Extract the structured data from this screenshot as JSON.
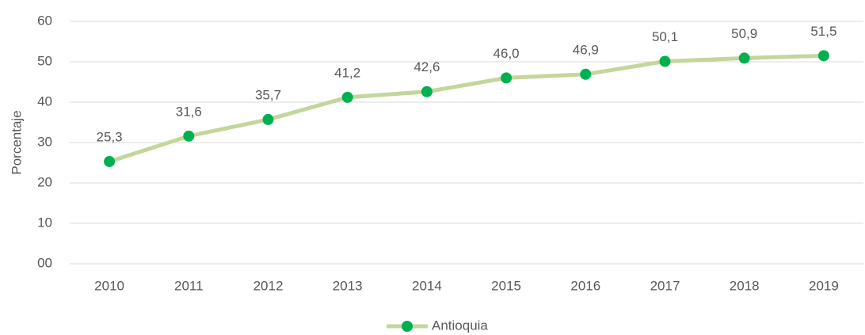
{
  "chart_data": {
    "type": "line",
    "y_axis_label": "Porcentaje",
    "categories": [
      "2010",
      "2011",
      "2012",
      "2013",
      "2014",
      "2015",
      "2016",
      "2017",
      "2018",
      "2019"
    ],
    "series": [
      {
        "name": "Antioquia",
        "color": "#c3d69b",
        "marker_color": "#00b050",
        "values": [
          25.3,
          31.6,
          35.7,
          41.2,
          42.6,
          46.0,
          46.9,
          50.1,
          50.9,
          51.5
        ],
        "value_labels": [
          "25,3",
          "31,6",
          "35,7",
          "41,2",
          "42,6",
          "46,0",
          "46,9",
          "50,1",
          "50,9",
          "51,5"
        ]
      }
    ],
    "ylim": [
      0,
      60
    ],
    "yticks": [
      {
        "value": 0,
        "label": "00"
      },
      10,
      20,
      30,
      40,
      50,
      60
    ],
    "grid": true,
    "legend": "bottom"
  }
}
